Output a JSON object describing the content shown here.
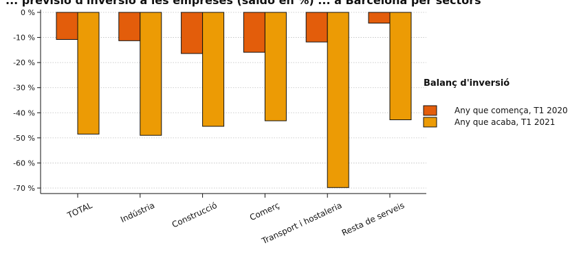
{
  "chart_data": {
    "type": "bar",
    "title": "... previsió d'inversió a les empreses (saldo en %) ... a Barcelona per sectors",
    "categories": [
      "TOTAL",
      "Indústria",
      "Construcció",
      "Comerç",
      "Transport i hostaleria",
      "Resta de serveis"
    ],
    "series": [
      {
        "name": "Any que comença, T1 2020",
        "color": "#e35d0b",
        "values": [
          -10.8,
          -11.3,
          -16.4,
          -15.9,
          -11.8,
          -4.3
        ]
      },
      {
        "name": "Any que acaba, T1 2021",
        "color": "#ec9b05",
        "values": [
          -48.5,
          -49.0,
          -45.4,
          -43.2,
          -69.8,
          -42.8
        ]
      }
    ],
    "ylim": [
      -70,
      0
    ],
    "yticks": [
      0,
      -10,
      -20,
      -30,
      -40,
      -50,
      -60,
      -70
    ],
    "ytick_labels": [
      "0 %",
      "-10 %",
      "-20 %",
      "-30 %",
      "-40 %",
      "-50 %",
      "-60 %",
      "-70 %"
    ],
    "xlabel": "",
    "ylabel": "",
    "grid": true,
    "legend": {
      "title": "Balanç d'inversió",
      "position": "right"
    }
  }
}
